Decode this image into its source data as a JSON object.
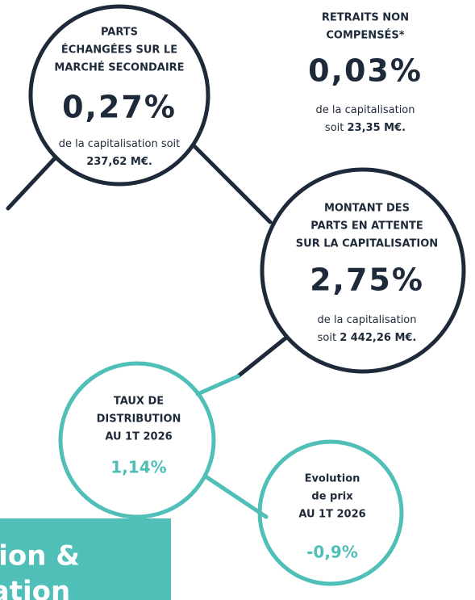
{
  "bubbles": [
    {
      "title": [
        "PARTS",
        "ÉCHANGÉES SUR LE",
        "MARCHÉ SECONDAIRE"
      ],
      "value": "0,27%",
      "note": [
        [
          {
            "text": "de la capitalisation soit"
          }
        ],
        [
          {
            "strong": "237,62 M€."
          }
        ]
      ]
    },
    {
      "title": [
        "RETRAITS NON",
        "COMPENSÉS*"
      ],
      "value": "0,03%",
      "note": [
        [
          {
            "text": "de la capitalisation"
          }
        ],
        [
          {
            "text": "soit "
          },
          {
            "strong": "23,35 M€."
          }
        ]
      ]
    },
    {
      "title": [
        "MONTANT DES",
        "PARTS EN ATTENTE",
        "SUR LA CAPITALISATION"
      ],
      "value": "2,75%",
      "note": [
        [
          {
            "text": "de la capitalisation"
          }
        ],
        [
          {
            "text": "soit  "
          },
          {
            "strong": "2 442,26 M€."
          }
        ]
      ]
    },
    {
      "title": [
        "TAUX DE",
        "DISTRIBUTION",
        "AU 1T 2026"
      ],
      "value": "1,14%",
      "note": []
    },
    {
      "title": [
        "Evolution",
        "de prix",
        "AU 1T 2026"
      ],
      "value": "-0,9%",
      "note": []
    }
  ],
  "banner": [
    "ribution &",
    "orisation"
  ]
}
